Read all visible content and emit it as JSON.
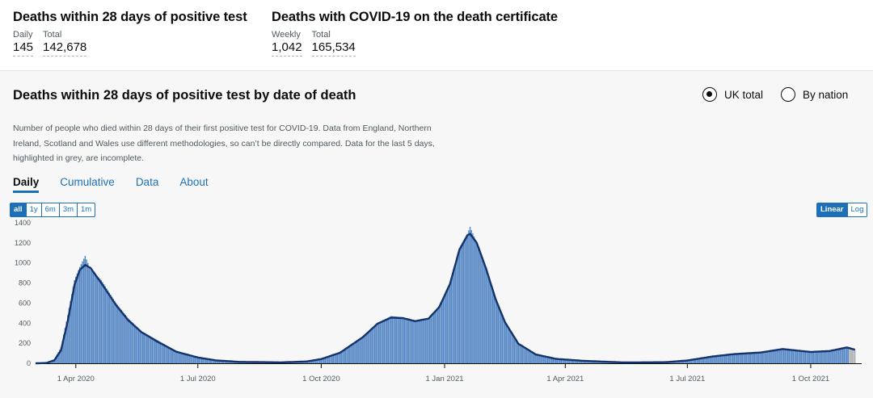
{
  "summary_left": {
    "title": "Deaths within 28 days of positive test",
    "metrics": [
      {
        "label": "Daily",
        "value": "145"
      },
      {
        "label": "Total",
        "value": "142,678"
      }
    ]
  },
  "summary_right": {
    "title": "Deaths with COVID-19 on the death certificate",
    "metrics": [
      {
        "label": "Weekly",
        "value": "1,042"
      },
      {
        "label": "Total",
        "value": "165,534"
      }
    ]
  },
  "card": {
    "title": "Deaths within 28 days of positive test by date of death",
    "radio_uk": "UK total",
    "radio_nation": "By nation",
    "description": "Number of people who died within 28 days of their first positive test for COVID-19. Data from England, Northern Ireland, Scotland and Wales use different methodologies, so can’t be directly compared. Data for the last 5 days, highlighted in grey, are incomplete.",
    "tabs": [
      "Daily",
      "Cumulative",
      "Data",
      "About"
    ],
    "range_buttons": [
      "all",
      "1y",
      "6m",
      "3m",
      "1m"
    ],
    "scale_buttons": [
      "Linear",
      "Log"
    ]
  },
  "colors": {
    "bar": "#5a8ac6",
    "bar_incomplete": "#b1b4b6",
    "average_line": "#12336b",
    "accent": "#1d70b8"
  },
  "chart_data": {
    "type": "bar",
    "title": "",
    "xlabel": "",
    "ylabel": "",
    "ylim": [
      0,
      1400
    ],
    "yticks": [
      0,
      200,
      400,
      600,
      800,
      1000,
      1200,
      1400
    ],
    "xticks": [
      "1 Apr 2020",
      "1 Jul 2020",
      "1 Oct 2020",
      "1 Jan 2021",
      "1 Apr 2021",
      "1 Jul 2021",
      "1 Oct 2021"
    ],
    "x_start": "2020-03-02",
    "x_end": "2021-11-08",
    "series": [
      {
        "name": "",
        "kind": "daily bars",
        "points": [
          [
            "2020-03-02",
            0
          ],
          [
            "2020-03-10",
            4
          ],
          [
            "2020-03-16",
            40
          ],
          [
            "2020-03-21",
            160
          ],
          [
            "2020-03-26",
            480
          ],
          [
            "2020-03-31",
            830
          ],
          [
            "2020-04-04",
            960
          ],
          [
            "2020-04-08",
            1070
          ],
          [
            "2020-04-12",
            930
          ],
          [
            "2020-04-20",
            830
          ],
          [
            "2020-05-01",
            600
          ],
          [
            "2020-05-10",
            450
          ],
          [
            "2020-05-20",
            320
          ],
          [
            "2020-06-01",
            230
          ],
          [
            "2020-06-15",
            120
          ],
          [
            "2020-07-01",
            60
          ],
          [
            "2020-07-15",
            30
          ],
          [
            "2020-08-01",
            15
          ],
          [
            "2020-09-01",
            10
          ],
          [
            "2020-09-20",
            20
          ],
          [
            "2020-10-01",
            45
          ],
          [
            "2020-10-15",
            110
          ],
          [
            "2020-11-01",
            270
          ],
          [
            "2020-11-12",
            400
          ],
          [
            "2020-11-22",
            470
          ],
          [
            "2020-12-01",
            460
          ],
          [
            "2020-12-10",
            415
          ],
          [
            "2020-12-20",
            450
          ],
          [
            "2020-12-28",
            570
          ],
          [
            "2021-01-05",
            800
          ],
          [
            "2021-01-12",
            1150
          ],
          [
            "2021-01-18",
            1290
          ],
          [
            "2021-01-20",
            1360
          ],
          [
            "2021-01-25",
            1200
          ],
          [
            "2021-02-01",
            950
          ],
          [
            "2021-02-08",
            650
          ],
          [
            "2021-02-15",
            420
          ],
          [
            "2021-02-25",
            200
          ],
          [
            "2021-03-10",
            90
          ],
          [
            "2021-03-25",
            45
          ],
          [
            "2021-04-15",
            25
          ],
          [
            "2021-05-15",
            8
          ],
          [
            "2021-06-15",
            12
          ],
          [
            "2021-07-01",
            30
          ],
          [
            "2021-07-20",
            70
          ],
          [
            "2021-08-05",
            95
          ],
          [
            "2021-08-25",
            110
          ],
          [
            "2021-09-10",
            150
          ],
          [
            "2021-09-20",
            130
          ],
          [
            "2021-10-01",
            115
          ],
          [
            "2021-10-15",
            125
          ],
          [
            "2021-10-28",
            165
          ],
          [
            "2021-11-03",
            140
          ]
        ]
      },
      {
        "name": "",
        "kind": "rolling average line",
        "points": [
          [
            "2020-03-02",
            0
          ],
          [
            "2020-03-10",
            3
          ],
          [
            "2020-03-16",
            30
          ],
          [
            "2020-03-21",
            130
          ],
          [
            "2020-03-26",
            420
          ],
          [
            "2020-03-31",
            780
          ],
          [
            "2020-04-04",
            930
          ],
          [
            "2020-04-08",
            980
          ],
          [
            "2020-04-12",
            950
          ],
          [
            "2020-04-20",
            800
          ],
          [
            "2020-05-01",
            580
          ],
          [
            "2020-05-10",
            430
          ],
          [
            "2020-05-20",
            310
          ],
          [
            "2020-06-01",
            215
          ],
          [
            "2020-06-15",
            115
          ],
          [
            "2020-07-01",
            58
          ],
          [
            "2020-07-15",
            28
          ],
          [
            "2020-08-01",
            14
          ],
          [
            "2020-09-01",
            9
          ],
          [
            "2020-09-20",
            18
          ],
          [
            "2020-10-01",
            42
          ],
          [
            "2020-10-15",
            105
          ],
          [
            "2020-11-01",
            260
          ],
          [
            "2020-11-12",
            395
          ],
          [
            "2020-11-22",
            455
          ],
          [
            "2020-12-01",
            450
          ],
          [
            "2020-12-10",
            420
          ],
          [
            "2020-12-20",
            445
          ],
          [
            "2020-12-28",
            560
          ],
          [
            "2021-01-05",
            790
          ],
          [
            "2021-01-12",
            1130
          ],
          [
            "2021-01-18",
            1275
          ],
          [
            "2021-01-20",
            1290
          ],
          [
            "2021-01-25",
            1200
          ],
          [
            "2021-02-01",
            940
          ],
          [
            "2021-02-08",
            640
          ],
          [
            "2021-02-15",
            410
          ],
          [
            "2021-02-25",
            195
          ],
          [
            "2021-03-10",
            88
          ],
          [
            "2021-03-25",
            44
          ],
          [
            "2021-04-15",
            24
          ],
          [
            "2021-05-15",
            8
          ],
          [
            "2021-06-15",
            11
          ],
          [
            "2021-07-01",
            28
          ],
          [
            "2021-07-20",
            68
          ],
          [
            "2021-08-05",
            92
          ],
          [
            "2021-08-25",
            108
          ],
          [
            "2021-09-10",
            142
          ],
          [
            "2021-09-20",
            128
          ],
          [
            "2021-10-01",
            113
          ],
          [
            "2021-10-15",
            122
          ],
          [
            "2021-10-28",
            158
          ],
          [
            "2021-11-03",
            135
          ]
        ]
      }
    ],
    "incomplete_days": 5,
    "grid": false,
    "legend": "none"
  }
}
